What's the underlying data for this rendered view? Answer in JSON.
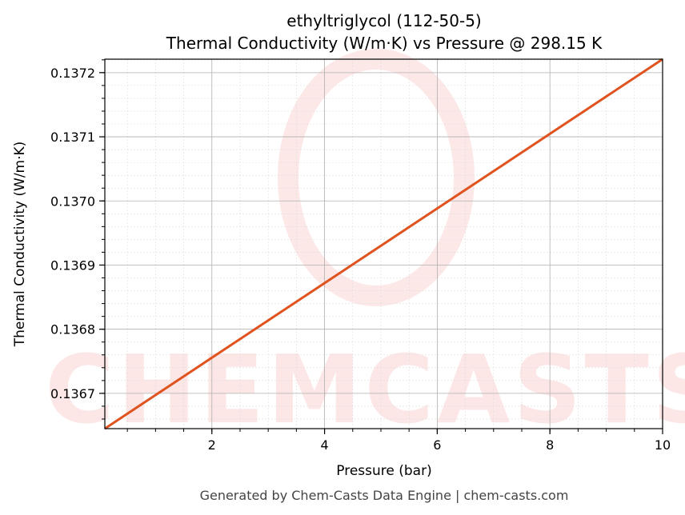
{
  "chart_data": {
    "type": "line",
    "title_line1": "ethyltriglycol (112-50-5)",
    "title_line2": "Thermal Conductivity (W/m·K) vs Pressure @ 298.15 K",
    "xlabel": "Pressure (bar)",
    "ylabel": "Thermal Conductivity (W/m·K)",
    "xlim": [
      0.1,
      10
    ],
    "ylim": [
      0.136645,
      0.137221
    ],
    "xticks": [
      2,
      4,
      6,
      8,
      10
    ],
    "xtick_labels": [
      "2",
      "4",
      "6",
      "8",
      "10"
    ],
    "yticks": [
      0.1367,
      0.1368,
      0.1369,
      0.137,
      0.1371,
      0.1372
    ],
    "ytick_labels": [
      "0.1367",
      "0.1368",
      "0.1369",
      "0.1370",
      "0.1371",
      "0.1372"
    ],
    "grid": true,
    "series": [
      {
        "name": "Thermal Conductivity",
        "color": "#e0531f",
        "x": [
          0.1,
          10
        ],
        "y": [
          0.136645,
          0.137221
        ]
      }
    ]
  },
  "watermark": "CHEMCASTS",
  "footer": "Generated by Chem-Casts Data Engine | chem-casts.com"
}
